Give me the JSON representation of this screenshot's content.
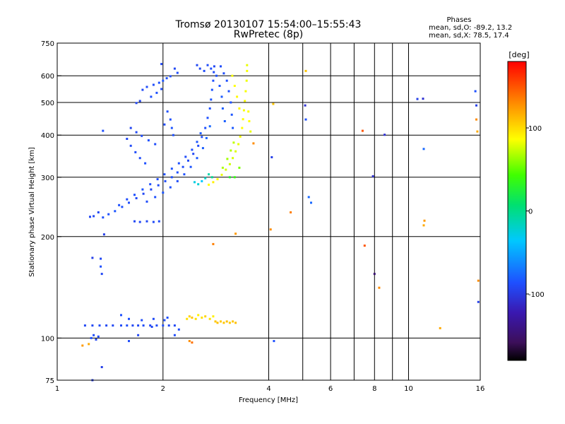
{
  "title": {
    "line1": "Tromsø 20130107 15:54:00–15:55:43",
    "line2": "RwPretec (8p)"
  },
  "stats": {
    "heading": "Phases",
    "line_o": "mean, sd,O: -89.2, 13.2",
    "line_x": "mean, sd,X: 78.5, 17.4"
  },
  "colorbar": {
    "unit": "[deg]",
    "ticks": [
      {
        "label": "100",
        "value": 100
      },
      {
        "label": "0",
        "value": 0
      },
      {
        "label": "-100",
        "value": -100
      }
    ],
    "range": [
      -180,
      180
    ]
  },
  "chart_data": {
    "type": "scatter",
    "title": "Tromsø 20130107 15:54:00–15:55:43",
    "subtitle": "RwPretec (8p)",
    "xlabel": "Frequency [MHz]",
    "ylabel": "Stationary phase Virtual Height [km]",
    "xscale": "log",
    "yscale": "log",
    "xlim": [
      1,
      16
    ],
    "ylim": [
      75,
      750
    ],
    "xticks": [
      {
        "value": 1,
        "label": "1"
      },
      {
        "value": 2,
        "label": "2"
      },
      {
        "value": 4,
        "label": "4"
      },
      {
        "value": 6,
        "label": "6"
      },
      {
        "value": 8,
        "label": "8"
      },
      {
        "value": 10,
        "label": "10"
      },
      {
        "value": 16,
        "label": "16"
      }
    ],
    "xgrid": [
      2,
      4,
      5,
      6,
      7,
      8,
      9,
      10
    ],
    "yticks": [
      {
        "value": 75,
        "label": "75"
      },
      {
        "value": 100,
        "label": "100"
      },
      {
        "value": 200,
        "label": "200"
      },
      {
        "value": 300,
        "label": "300"
      },
      {
        "value": 400,
        "label": "400"
      },
      {
        "value": 500,
        "label": "500"
      },
      {
        "value": 600,
        "label": "600"
      },
      {
        "value": 750,
        "label": "750"
      }
    ],
    "ygrid": [
      100,
      200,
      300,
      400,
      500,
      600
    ],
    "grid": true,
    "color_scale": "rainbow phase [deg], -180 black/purple to +180 red",
    "points": [
      [
        1.24,
        229,
        -95
      ],
      [
        1.27,
        230,
        -95
      ],
      [
        1.31,
        236,
        -95
      ],
      [
        1.35,
        228,
        -90
      ],
      [
        1.4,
        233,
        -90
      ],
      [
        1.46,
        238,
        -88
      ],
      [
        1.53,
        245,
        -90
      ],
      [
        1.6,
        252,
        -92
      ],
      [
        1.68,
        260,
        -94
      ],
      [
        1.76,
        268,
        -95
      ],
      [
        1.85,
        276,
        -95
      ],
      [
        1.94,
        284,
        -93
      ],
      [
        2.03,
        292,
        -92
      ],
      [
        2.12,
        300,
        -90
      ],
      [
        2.2,
        310,
        -90
      ],
      [
        2.28,
        322,
        -92
      ],
      [
        2.36,
        336,
        -94
      ],
      [
        2.44,
        352,
        -95
      ],
      [
        2.52,
        372,
        -93
      ],
      [
        2.58,
        395,
        -92
      ],
      [
        2.64,
        420,
        -90
      ],
      [
        2.68,
        450,
        -90
      ],
      [
        2.72,
        480,
        -90
      ],
      [
        2.74,
        510,
        -88
      ],
      [
        2.76,
        545,
        -88
      ],
      [
        2.78,
        580,
        -90
      ],
      [
        2.79,
        615,
        -92
      ],
      [
        2.8,
        640,
        -95
      ],
      [
        1.5,
        248,
        -90
      ],
      [
        1.58,
        258,
        -92
      ],
      [
        1.66,
        266,
        -90
      ],
      [
        1.75,
        276,
        -88
      ],
      [
        1.84,
        286,
        -90
      ],
      [
        1.93,
        296,
        -92
      ],
      [
        2.02,
        306,
        -90
      ],
      [
        2.12,
        318,
        -88
      ],
      [
        2.22,
        330,
        -90
      ],
      [
        2.32,
        345,
        -92
      ],
      [
        2.42,
        362,
        -90
      ],
      [
        2.5,
        382,
        -88
      ],
      [
        2.56,
        405,
        -85
      ],
      [
        1.8,
        254,
        -92
      ],
      [
        1.9,
        262,
        -90
      ],
      [
        2.0,
        270,
        -88
      ],
      [
        2.1,
        280,
        -90
      ],
      [
        2.2,
        292,
        -92
      ],
      [
        2.3,
        306,
        -90
      ],
      [
        2.4,
        322,
        -88
      ],
      [
        2.5,
        342,
        -86
      ],
      [
        2.6,
        366,
        -84
      ],
      [
        2.66,
        392,
        -82
      ],
      [
        2.72,
        425,
        -80
      ],
      [
        1.66,
        222,
        -95
      ],
      [
        1.72,
        221,
        -95
      ],
      [
        1.8,
        222,
        -95
      ],
      [
        1.88,
        221,
        -93
      ],
      [
        1.95,
        222,
        -93
      ],
      [
        1.58,
        390,
        -95
      ],
      [
        1.62,
        372,
        -93
      ],
      [
        1.67,
        356,
        -92
      ],
      [
        1.72,
        342,
        -92
      ],
      [
        1.78,
        330,
        -90
      ],
      [
        1.62,
        420,
        -96
      ],
      [
        1.68,
        408,
        -94
      ],
      [
        1.74,
        398,
        -92
      ],
      [
        1.82,
        386,
        -90
      ],
      [
        1.9,
        376,
        -92
      ],
      [
        1.68,
        498,
        -95
      ],
      [
        1.72,
        505,
        -96
      ],
      [
        1.75,
        545,
        -94
      ],
      [
        1.8,
        556,
        -92
      ],
      [
        1.88,
        564,
        -92
      ],
      [
        1.95,
        572,
        -90
      ],
      [
        2.0,
        580,
        -88
      ],
      [
        2.05,
        590,
        -90
      ],
      [
        2.1,
        598,
        -92
      ],
      [
        1.85,
        520,
        -90
      ],
      [
        1.92,
        534,
        -90
      ],
      [
        1.98,
        548,
        -92
      ],
      [
        2.06,
        470,
        -90
      ],
      [
        2.1,
        445,
        -90
      ],
      [
        2.12,
        420,
        -88
      ],
      [
        2.14,
        400,
        -90
      ],
      [
        2.02,
        430,
        -92
      ],
      [
        1.98,
        650,
        -95
      ],
      [
        2.16,
        630,
        -95
      ],
      [
        2.2,
        612,
        -92
      ],
      [
        2.5,
        645,
        -95
      ],
      [
        2.55,
        630,
        -94
      ],
      [
        2.62,
        620,
        -92
      ],
      [
        2.68,
        645,
        -92
      ],
      [
        2.74,
        630,
        -90
      ],
      [
        2.84,
        600,
        -90
      ],
      [
        2.9,
        560,
        -88
      ],
      [
        2.94,
        520,
        -86
      ],
      [
        2.96,
        480,
        -84
      ],
      [
        3.0,
        440,
        -84
      ],
      [
        2.92,
        640,
        -92
      ],
      [
        2.98,
        610,
        -92
      ],
      [
        3.04,
        580,
        -90
      ],
      [
        3.08,
        540,
        -90
      ],
      [
        3.12,
        500,
        -90
      ],
      [
        3.14,
        460,
        -88
      ],
      [
        3.16,
        420,
        -86
      ],
      [
        2.46,
        290,
        -30
      ],
      [
        2.52,
        286,
        -25
      ],
      [
        2.58,
        292,
        -40
      ],
      [
        2.64,
        298,
        -20
      ],
      [
        2.7,
        306,
        -10
      ],
      [
        2.76,
        300,
        0
      ],
      [
        2.7,
        285,
        90
      ],
      [
        2.78,
        290,
        95
      ],
      [
        2.86,
        296,
        90
      ],
      [
        2.94,
        305,
        85
      ],
      [
        3.02,
        316,
        80
      ],
      [
        3.1,
        328,
        78
      ],
      [
        3.16,
        342,
        80
      ],
      [
        3.22,
        358,
        82
      ],
      [
        3.28,
        376,
        85
      ],
      [
        3.32,
        396,
        88
      ],
      [
        3.36,
        420,
        90
      ],
      [
        3.38,
        446,
        90
      ],
      [
        3.4,
        474,
        88
      ],
      [
        3.42,
        505,
        90
      ],
      [
        3.44,
        540,
        88
      ],
      [
        3.46,
        580,
        86
      ],
      [
        3.47,
        620,
        88
      ],
      [
        3.47,
        645,
        85
      ],
      [
        3.52,
        440,
        90
      ],
      [
        3.55,
        410,
        85
      ],
      [
        3.5,
        470,
        90
      ],
      [
        3.3,
        480,
        92
      ],
      [
        3.25,
        520,
        92
      ],
      [
        3.2,
        560,
        90
      ],
      [
        3.15,
        600,
        88
      ],
      [
        2.96,
        320,
        70
      ],
      [
        3.05,
        340,
        68
      ],
      [
        3.12,
        360,
        72
      ],
      [
        3.18,
        380,
        75
      ],
      [
        3.2,
        300,
        40
      ],
      [
        3.1,
        300,
        30
      ],
      [
        3.3,
        320,
        60
      ],
      [
        2.34,
        114,
        100
      ],
      [
        2.38,
        116,
        105
      ],
      [
        2.42,
        115,
        110
      ],
      [
        2.48,
        114,
        100
      ],
      [
        2.52,
        117,
        95
      ],
      [
        2.58,
        115,
        100
      ],
      [
        2.64,
        116,
        105
      ],
      [
        2.72,
        114,
        100
      ],
      [
        2.78,
        116,
        95
      ],
      [
        2.82,
        112,
        110
      ],
      [
        2.86,
        111,
        112
      ],
      [
        2.92,
        112,
        108
      ],
      [
        2.98,
        111,
        110
      ],
      [
        3.04,
        112,
        112
      ],
      [
        3.1,
        111,
        108
      ],
      [
        3.16,
        112,
        110
      ],
      [
        3.22,
        111,
        112
      ],
      [
        1.2,
        109,
        -95
      ],
      [
        1.26,
        109,
        -95
      ],
      [
        1.32,
        109,
        -93
      ],
      [
        1.38,
        109,
        -95
      ],
      [
        1.44,
        109,
        -95
      ],
      [
        1.52,
        109,
        -93
      ],
      [
        1.58,
        109,
        -92
      ],
      [
        1.64,
        109,
        -95
      ],
      [
        1.7,
        109,
        -95
      ],
      [
        1.76,
        109,
        -93
      ],
      [
        1.84,
        109,
        -95
      ],
      [
        1.92,
        109,
        -93
      ],
      [
        2.0,
        109,
        -92
      ],
      [
        2.08,
        109,
        -95
      ],
      [
        2.16,
        109,
        -95
      ],
      [
        1.6,
        114,
        -90
      ],
      [
        1.74,
        113,
        -92
      ],
      [
        1.88,
        114,
        -94
      ],
      [
        2.02,
        113,
        -92
      ],
      [
        1.25,
        100,
        -90
      ],
      [
        1.27,
        102,
        -92
      ],
      [
        1.29,
        99,
        -95
      ],
      [
        1.31,
        101,
        -93
      ],
      [
        1.23,
        96,
        120
      ],
      [
        1.18,
        95,
        125
      ],
      [
        1.26,
        173,
        -100
      ],
      [
        1.33,
        172,
        -95
      ],
      [
        1.33,
        163,
        -90
      ],
      [
        1.34,
        155,
        -95
      ],
      [
        1.34,
        82,
        -100
      ],
      [
        1.26,
        75,
        -100
      ],
      [
        1.36,
        203,
        -100
      ],
      [
        1.35,
        412,
        -90
      ],
      [
        1.52,
        117,
        -90
      ],
      [
        1.6,
        98,
        -92
      ],
      [
        1.7,
        102,
        -95
      ],
      [
        1.86,
        108,
        -95
      ],
      [
        2.06,
        115,
        -90
      ],
      [
        2.16,
        102,
        -92
      ],
      [
        2.22,
        106,
        -92
      ],
      [
        2.38,
        98,
        130
      ],
      [
        2.42,
        97,
        140
      ],
      [
        2.78,
        190,
        135
      ],
      [
        3.22,
        204,
        125
      ],
      [
        3.62,
        378,
        130
      ],
      [
        4.05,
        210,
        130
      ],
      [
        4.12,
        495,
        110
      ],
      [
        4.08,
        344,
        -100
      ],
      [
        4.14,
        98,
        -90
      ],
      [
        4.62,
        236,
        135
      ],
      [
        5.1,
        620,
        110
      ],
      [
        5.2,
        262,
        -80
      ],
      [
        5.28,
        252,
        -80
      ],
      [
        5.08,
        490,
        -110
      ],
      [
        5.1,
        445,
        -90
      ],
      [
        7.4,
        412,
        150
      ],
      [
        7.5,
        188,
        150
      ],
      [
        7.92,
        302,
        -110
      ],
      [
        8.0,
        155,
        -150
      ],
      [
        8.25,
        141,
        130
      ],
      [
        8.55,
        401,
        -110
      ],
      [
        10.6,
        512,
        -100
      ],
      [
        11.0,
        513,
        -110
      ],
      [
        11.05,
        216,
        120
      ],
      [
        11.1,
        223,
        125
      ],
      [
        11.05,
        364,
        -80
      ],
      [
        12.3,
        107,
        120
      ],
      [
        15.6,
        445,
        130
      ],
      [
        15.7,
        410,
        120
      ],
      [
        15.8,
        148,
        130
      ],
      [
        15.8,
        128,
        -100
      ],
      [
        15.5,
        540,
        -90
      ],
      [
        15.6,
        490,
        -100
      ]
    ]
  }
}
